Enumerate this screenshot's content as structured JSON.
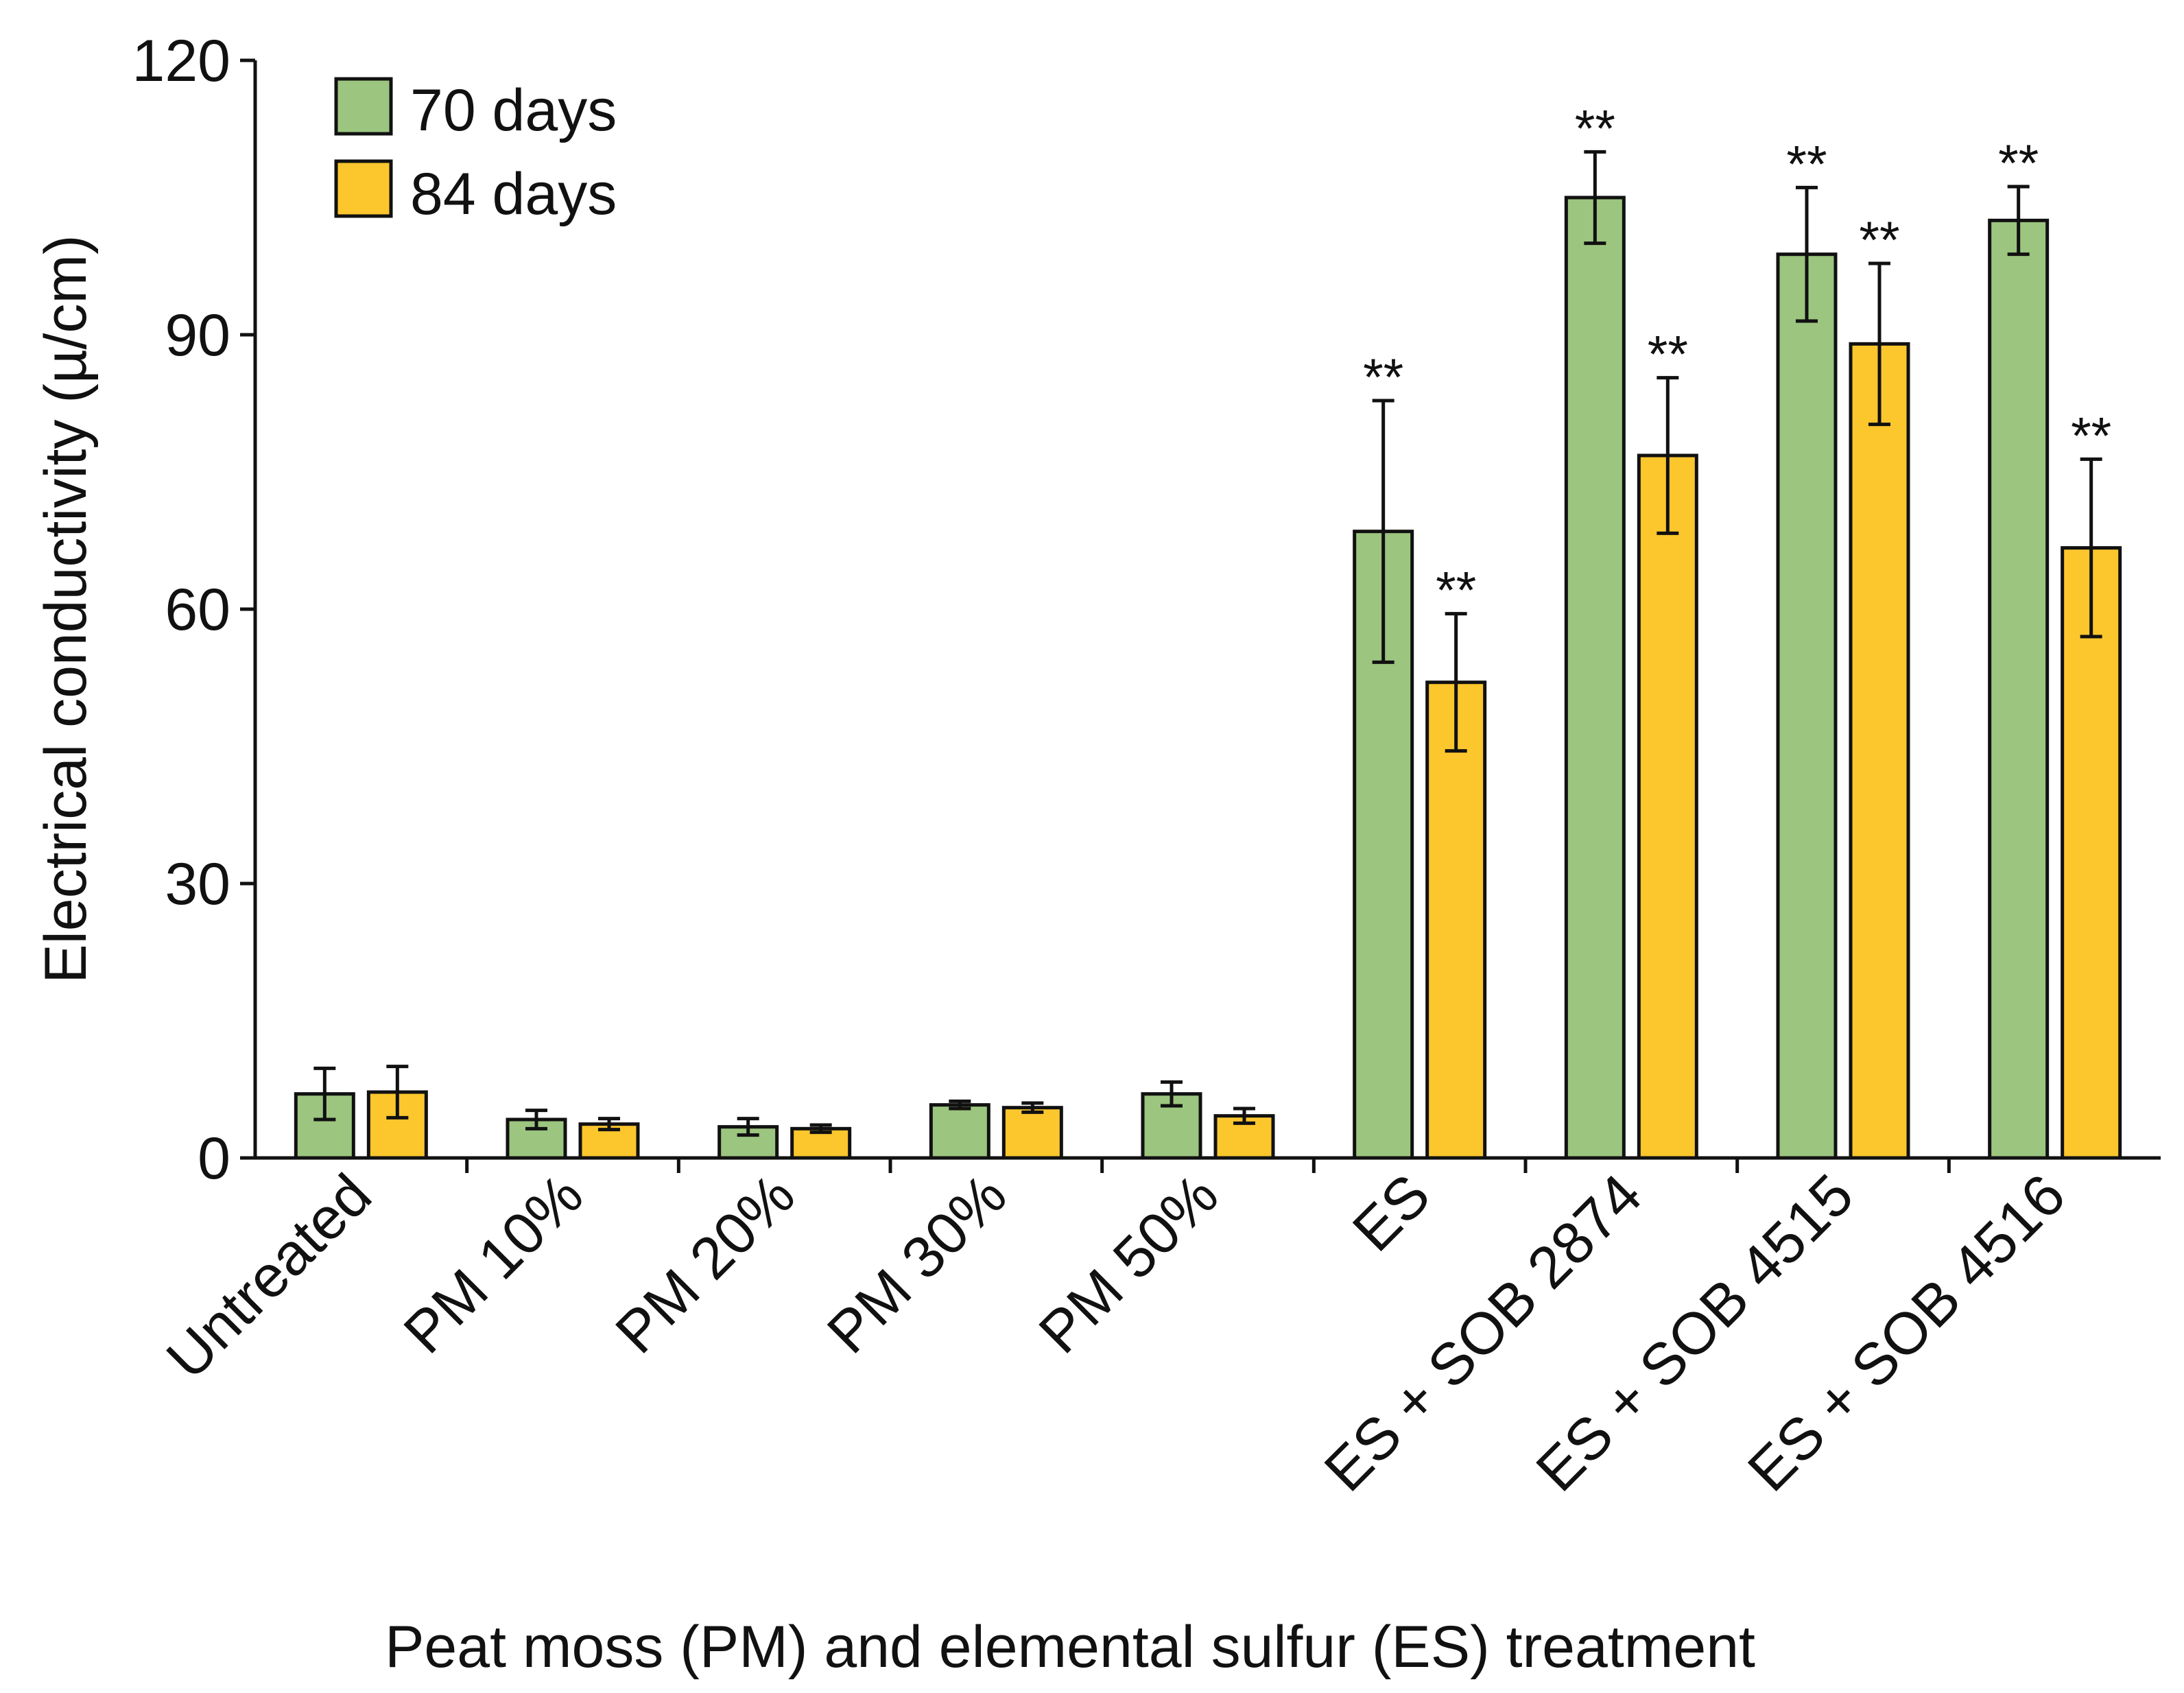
{
  "chart_data": {
    "type": "bar",
    "title": "",
    "xlabel": "Peat moss (PM) and elemental sulfur (ES) treatment",
    "ylabel": "Electrical conductivity (µ/cm)",
    "ylim": [
      0,
      120
    ],
    "yticks": [
      "0",
      "30",
      "60",
      "90",
      "120"
    ],
    "categories": [
      "Untreated",
      "PM 10%",
      "PM 20%",
      "PM 30%",
      "PM 50%",
      "ES",
      "ES + SOB 2874",
      "ES + SOB 4515",
      "ES + SOB 4516"
    ],
    "legend_position": "top-left",
    "series": [
      {
        "name": "70 days",
        "color": "#9cc57f",
        "values": [
          7.0,
          4.2,
          3.4,
          5.8,
          7.0,
          68.5,
          105.0,
          98.8,
          102.5
        ],
        "errors": [
          2.8,
          1.0,
          0.9,
          0.4,
          1.3,
          14.3,
          5.0,
          7.3,
          3.7
        ],
        "significance": [
          "",
          "",
          "",
          "",
          "",
          "**",
          "**",
          "**",
          "**"
        ]
      },
      {
        "name": "84 days",
        "color": "#fcc62d",
        "values": [
          7.2,
          3.7,
          3.2,
          5.5,
          4.6,
          52.0,
          76.8,
          89.0,
          66.7
        ],
        "errors": [
          2.8,
          0.6,
          0.4,
          0.5,
          0.8,
          7.5,
          8.5,
          8.8,
          9.7
        ],
        "significance": [
          "",
          "",
          "",
          "",
          "",
          "**",
          "**",
          "**",
          "**"
        ]
      }
    ]
  }
}
